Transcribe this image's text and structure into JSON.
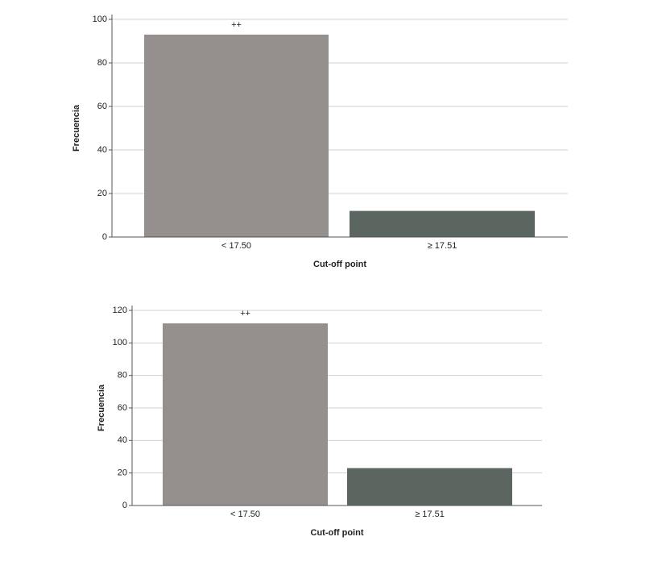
{
  "chart_data": [
    {
      "type": "bar",
      "annotation": "++",
      "x_label": "Cut-off point",
      "y_label": "Frecuencia",
      "categories": [
        "< 17.50",
        "≥ 17.51"
      ],
      "values": [
        93,
        12
      ],
      "colors": [
        "#958f8d",
        "#5c6661"
      ],
      "ylim": [
        0,
        100
      ],
      "yticks": [
        0,
        20,
        40,
        60,
        80,
        100
      ],
      "grid": true
    },
    {
      "type": "bar",
      "annotation": "++",
      "x_label": "Cut-off point",
      "y_label": "Frecuencia",
      "categories": [
        "< 17.50",
        "≥ 17.51"
      ],
      "values": [
        112,
        23
      ],
      "colors": [
        "#958f8d",
        "#5c6661"
      ],
      "ylim": [
        0,
        120
      ],
      "yticks": [
        0,
        20,
        40,
        60,
        80,
        100,
        120
      ],
      "grid": true
    }
  ]
}
